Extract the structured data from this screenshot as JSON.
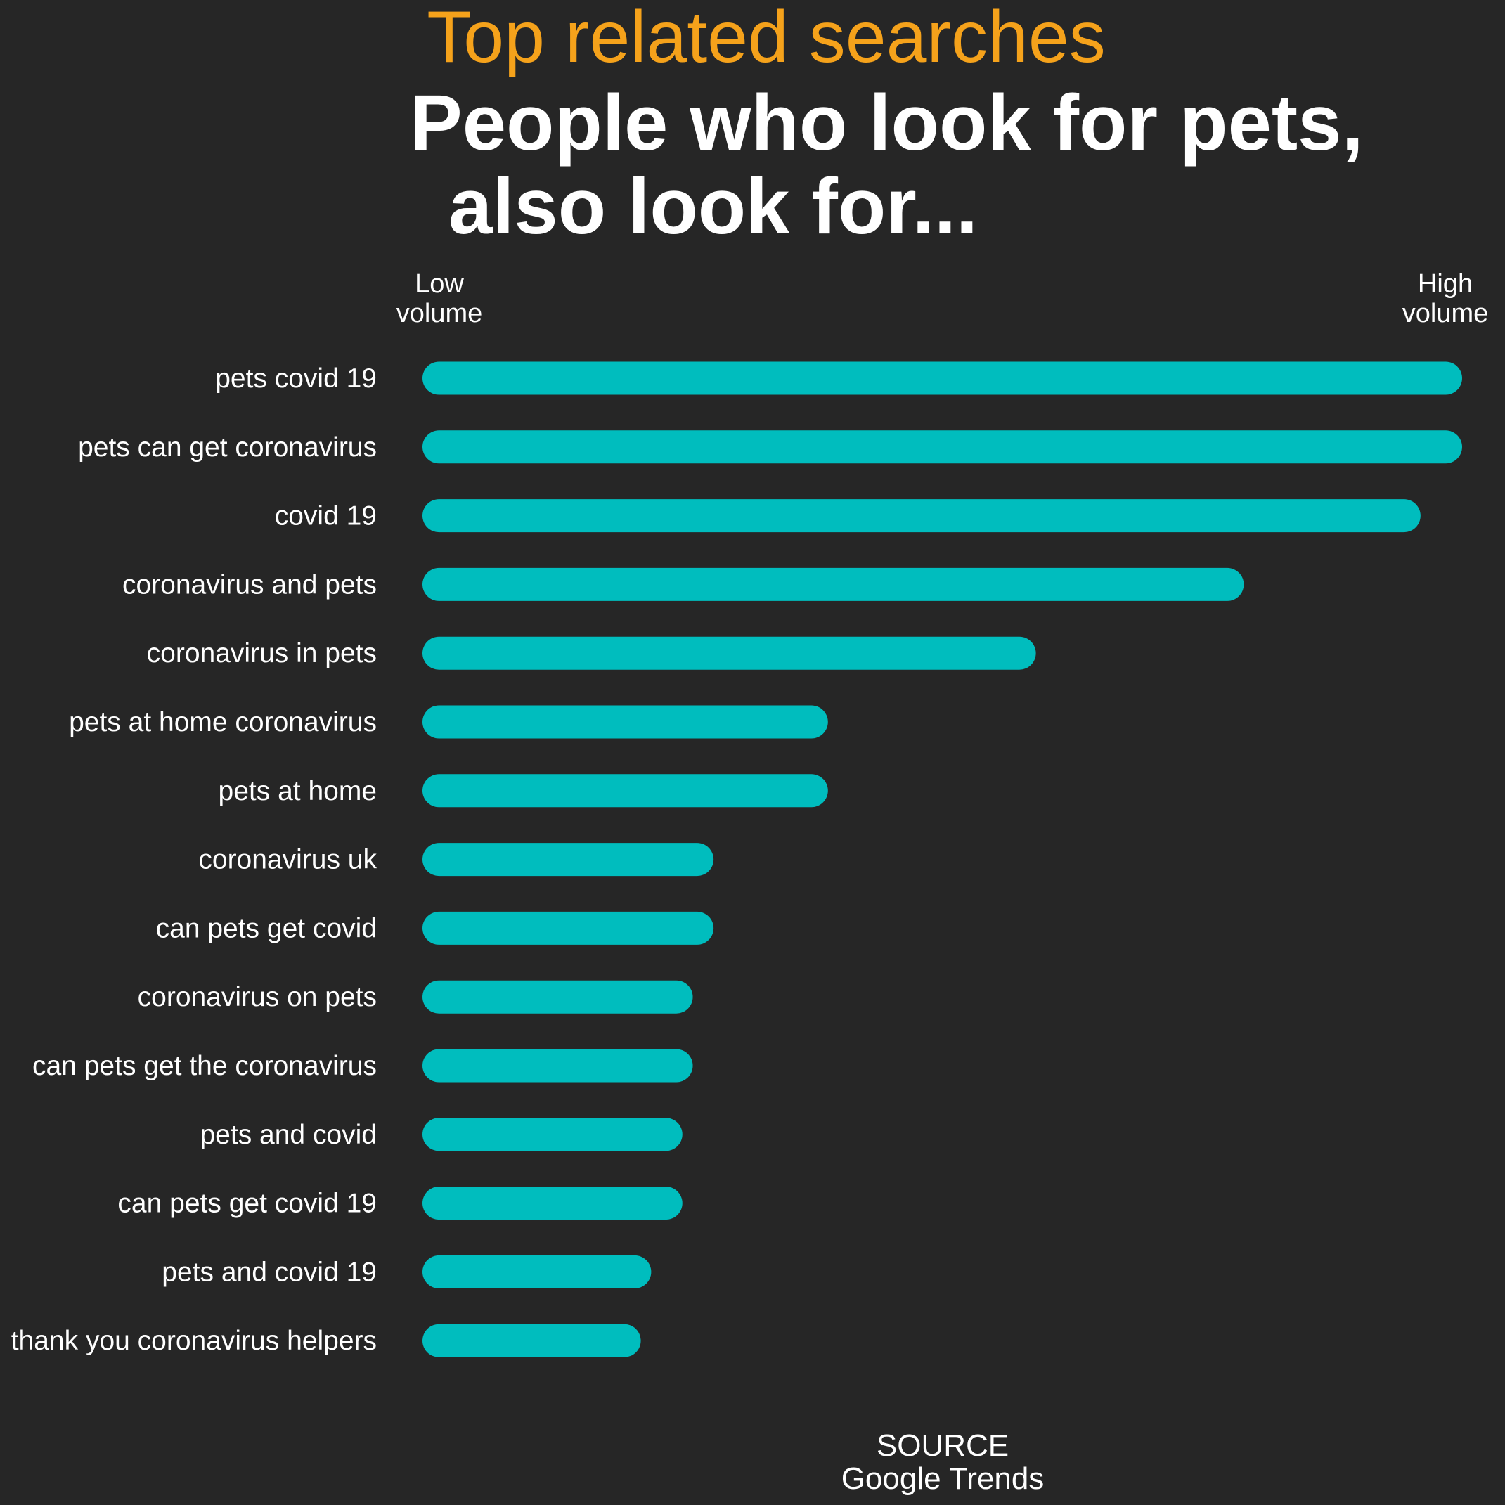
{
  "colors": {
    "background": "#262626",
    "accent": "#f5a21b",
    "bar": "#00bdbe",
    "text": "#ffffff"
  },
  "header": {
    "kicker": "Top related searches",
    "headline_line1": "People who look for pets,",
    "headline_line2": "also look for..."
  },
  "axis": {
    "low_line1": "Low",
    "low_line2": "volume",
    "high_line1": "High",
    "high_line2": "volume"
  },
  "footer": {
    "source_label": "SOURCE",
    "source_name": "Google Trends"
  },
  "chart_data": {
    "type": "bar",
    "orientation": "horizontal",
    "categories": [
      "pets covid 19",
      "pets can get coronavirus",
      "covid 19",
      "coronavirus and pets",
      "coronavirus in pets",
      "pets at home coronavirus",
      "pets at home",
      "coronavirus uk",
      "can pets get covid",
      "coronavirus on pets",
      "can pets get the coronavirus",
      "pets and covid",
      "can pets get covid 19",
      "pets and covid 19",
      "thank you coronavirus helpers"
    ],
    "values": [
      100,
      100,
      96,
      79,
      59,
      39,
      39,
      28,
      28,
      26,
      26,
      25,
      25,
      22,
      21
    ],
    "xlim": [
      0,
      100
    ],
    "xlabel": "",
    "ylabel": "",
    "grid": false,
    "legend": "none"
  }
}
